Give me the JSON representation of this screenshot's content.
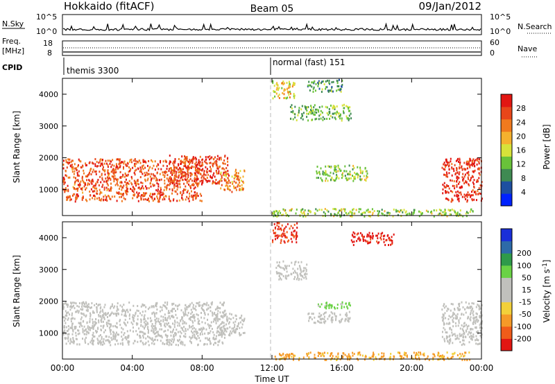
{
  "header": {
    "station": "Hokkaido (fitACF)",
    "beam": "Beam 05",
    "date": "09/Jan/2012"
  },
  "aux_panels": {
    "nsky_label": "N.Sky",
    "nsearch_label": "N.Search",
    "nsky_ticks": [
      "10^5",
      "10^0"
    ],
    "freq_label": "Freq.",
    "freq_unit": "[MHz]",
    "freq_ticks": [
      "18",
      "8"
    ],
    "nave_label": "Nave",
    "nave_ticks": [
      "60",
      "0"
    ],
    "cpid_label": "CPID",
    "cpid_segments": [
      {
        "label": "themis 3300",
        "start_hour": 0
      },
      {
        "label": "normal (fast) 151",
        "start_hour": 12
      }
    ]
  },
  "colors": {
    "power_scale": [
      "#0022ff",
      "#1e4fa0",
      "#3f8a52",
      "#69c23a",
      "#d7e23a",
      "#f5b12e",
      "#f07a1e",
      "#e8461a",
      "#e21612"
    ],
    "velocity_scale": [
      "#e21612",
      "#f05c1a",
      "#f59a28",
      "#f2d03a",
      "#c0c0bc",
      "#c0c0bc",
      "#6ad245",
      "#2e9a4a",
      "#2d6aa8",
      "#1a2fd8"
    ],
    "ground_scatter": "#c0c0bc"
  },
  "chart_data": [
    {
      "type": "heatmap",
      "title": "",
      "xlabel": "Time UT",
      "ylabel": "Slant Range [km]",
      "xlim": [
        0,
        24
      ],
      "ylim": [
        180,
        4500
      ],
      "x_tick_labels": [
        "00:00",
        "04:00",
        "08:00",
        "12:00",
        "16:00",
        "20:00",
        "00:00"
      ],
      "y_ticks": [
        1000,
        2000,
        3000,
        4000
      ],
      "y_tick_labels": [
        "1000",
        "2000",
        "3000",
        "4000"
      ],
      "colorbar": {
        "label": "Power [dB]",
        "range": [
          0,
          32
        ],
        "tick_values": [
          4,
          8,
          12,
          16,
          20,
          24,
          28
        ],
        "tick_labels": [
          "4",
          "8",
          "12",
          "16",
          "20",
          "24",
          "28"
        ]
      },
      "regions": [
        {
          "t0": 0.0,
          "t1": 8.0,
          "r0": 650,
          "r1": 2000,
          "level": 26
        },
        {
          "t0": 6.0,
          "t1": 9.5,
          "r0": 1200,
          "r1": 2100,
          "level": 27
        },
        {
          "t0": 9.0,
          "t1": 10.4,
          "r0": 950,
          "r1": 1650,
          "level": 22
        },
        {
          "t0": 21.7,
          "t1": 24.0,
          "r0": 650,
          "r1": 2000,
          "level": 29
        },
        {
          "t0": 14.5,
          "t1": 17.5,
          "r0": 1300,
          "r1": 1800,
          "level": 14
        },
        {
          "t0": 13.0,
          "t1": 16.5,
          "r0": 3200,
          "r1": 3700,
          "level": 12
        },
        {
          "t0": 12.0,
          "t1": 13.3,
          "r0": 3900,
          "r1": 4500,
          "level": 18
        },
        {
          "t0": 14.0,
          "t1": 16.0,
          "r0": 4100,
          "r1": 4500,
          "level": 10
        },
        {
          "t0": 12.0,
          "t1": 23.5,
          "r0": 180,
          "r1": 420,
          "level": 14
        }
      ]
    },
    {
      "type": "heatmap",
      "title": "",
      "xlabel": "Time UT",
      "ylabel": "Slant Range [km]",
      "xlim": [
        0,
        24
      ],
      "ylim": [
        180,
        4500
      ],
      "x_tick_labels": [
        "00:00",
        "04:00",
        "08:00",
        "12:00",
        "16:00",
        "20:00",
        "00:00"
      ],
      "y_ticks": [
        1000,
        2000,
        3000,
        4000
      ],
      "y_tick_labels": [
        "1000",
        "2000",
        "3000",
        "4000"
      ],
      "colorbar": {
        "label": "Velocity [m s^-1]",
        "range": [
          -250,
          250
        ],
        "tick_values": [
          -200,
          -100,
          -50,
          -15,
          15,
          50,
          100,
          200
        ],
        "tick_labels": [
          "-200",
          "-100",
          "-50",
          "-15",
          "15",
          "50",
          "100",
          "200"
        ]
      },
      "regions": [
        {
          "t0": 0.0,
          "t1": 9.3,
          "r0": 650,
          "r1": 2000,
          "velocity": 0
        },
        {
          "t0": 9.0,
          "t1": 10.4,
          "r0": 950,
          "r1": 1650,
          "velocity": 0
        },
        {
          "t0": 21.7,
          "t1": 24.0,
          "r0": 650,
          "r1": 2000,
          "velocity": 0
        },
        {
          "t0": 14.0,
          "t1": 16.5,
          "r0": 1350,
          "r1": 1700,
          "velocity": 0
        },
        {
          "t0": 12.2,
          "t1": 14.0,
          "r0": 2700,
          "r1": 3300,
          "velocity": 0
        },
        {
          "t0": 12.0,
          "t1": 13.4,
          "r0": 3850,
          "r1": 4500,
          "velocity": -200
        },
        {
          "t0": 16.5,
          "t1": 19.0,
          "r0": 3800,
          "r1": 4200,
          "velocity": -220
        },
        {
          "t0": 14.5,
          "t1": 16.5,
          "r0": 1800,
          "r1": 2000,
          "velocity": 70
        },
        {
          "t0": 12.0,
          "t1": 23.5,
          "r0": 180,
          "r1": 420,
          "velocity": -60
        }
      ]
    }
  ]
}
